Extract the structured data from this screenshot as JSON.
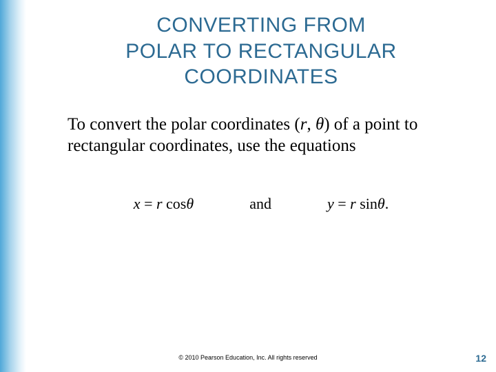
{
  "colors": {
    "title_color": "#2c6a92",
    "body_color": "#000000",
    "page_num_color": "#2c6a92",
    "background": "#ffffff",
    "gradient_from": "#4fa8d8",
    "gradient_to": "#ffffff"
  },
  "typography": {
    "title_fontsize": 30,
    "body_fontsize": 25,
    "equation_fontsize": 22,
    "footer_fontsize": 9,
    "page_num_fontsize": 14,
    "title_font": "Arial",
    "body_font": "Times New Roman"
  },
  "title": {
    "line1": "CONVERTING FROM",
    "line2": "POLAR TO RECTANGULAR",
    "line3": "COORDINATES"
  },
  "body": {
    "pre": "To convert the polar coordinates (",
    "r": "r",
    "comma": ", ",
    "theta": "θ",
    "post": ") of a point to rectangular coordinates, use the equations"
  },
  "equations": {
    "x": "x",
    "eq": " = ",
    "r": "r",
    "cos": " cos",
    "theta": "θ",
    "and": "and",
    "y": "y",
    "sin": " sin",
    "period": "."
  },
  "footer": "© 2010 Pearson Education, Inc. All rights reserved",
  "page_number": "12"
}
